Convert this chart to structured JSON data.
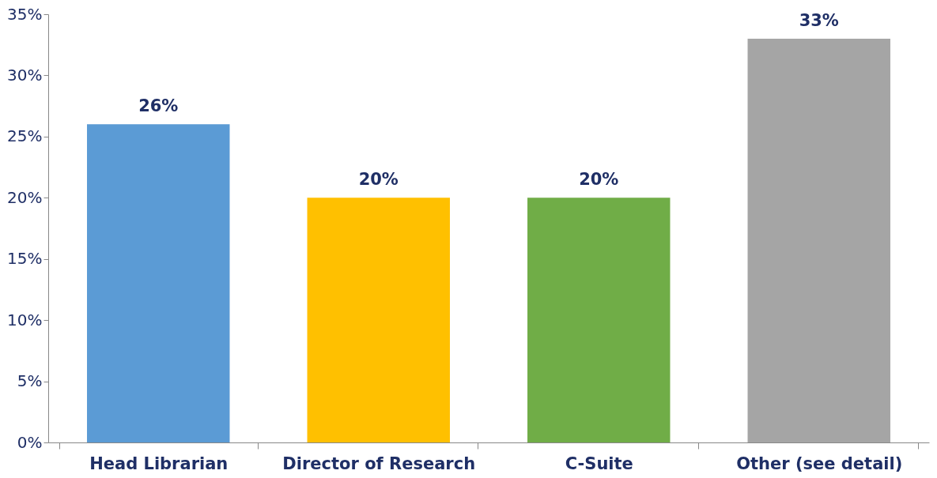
{
  "chart_data": {
    "type": "bar",
    "categories": [
      "Head Librarian",
      "Director of Research",
      "C-Suite",
      "Other (see detail)"
    ],
    "values": [
      26,
      20,
      20,
      33
    ],
    "colors": [
      "#5b9bd5",
      "#ffc000",
      "#70ad47",
      "#a5a5a5"
    ],
    "ylim": [
      0,
      35
    ],
    "yticks": [
      {
        "value": 0,
        "label": "0%"
      },
      {
        "value": 5,
        "label": "5%"
      },
      {
        "value": 10,
        "label": "10%"
      },
      {
        "value": 15,
        "label": "15%"
      },
      {
        "value": 20,
        "label": "20%"
      },
      {
        "value": 25,
        "label": "25%"
      },
      {
        "value": 30,
        "label": "30%"
      },
      {
        "value": 35,
        "label": "35%"
      }
    ],
    "value_labels": [
      "26%",
      "20%",
      "20%",
      "33%"
    ],
    "grid": false,
    "legend": false
  }
}
